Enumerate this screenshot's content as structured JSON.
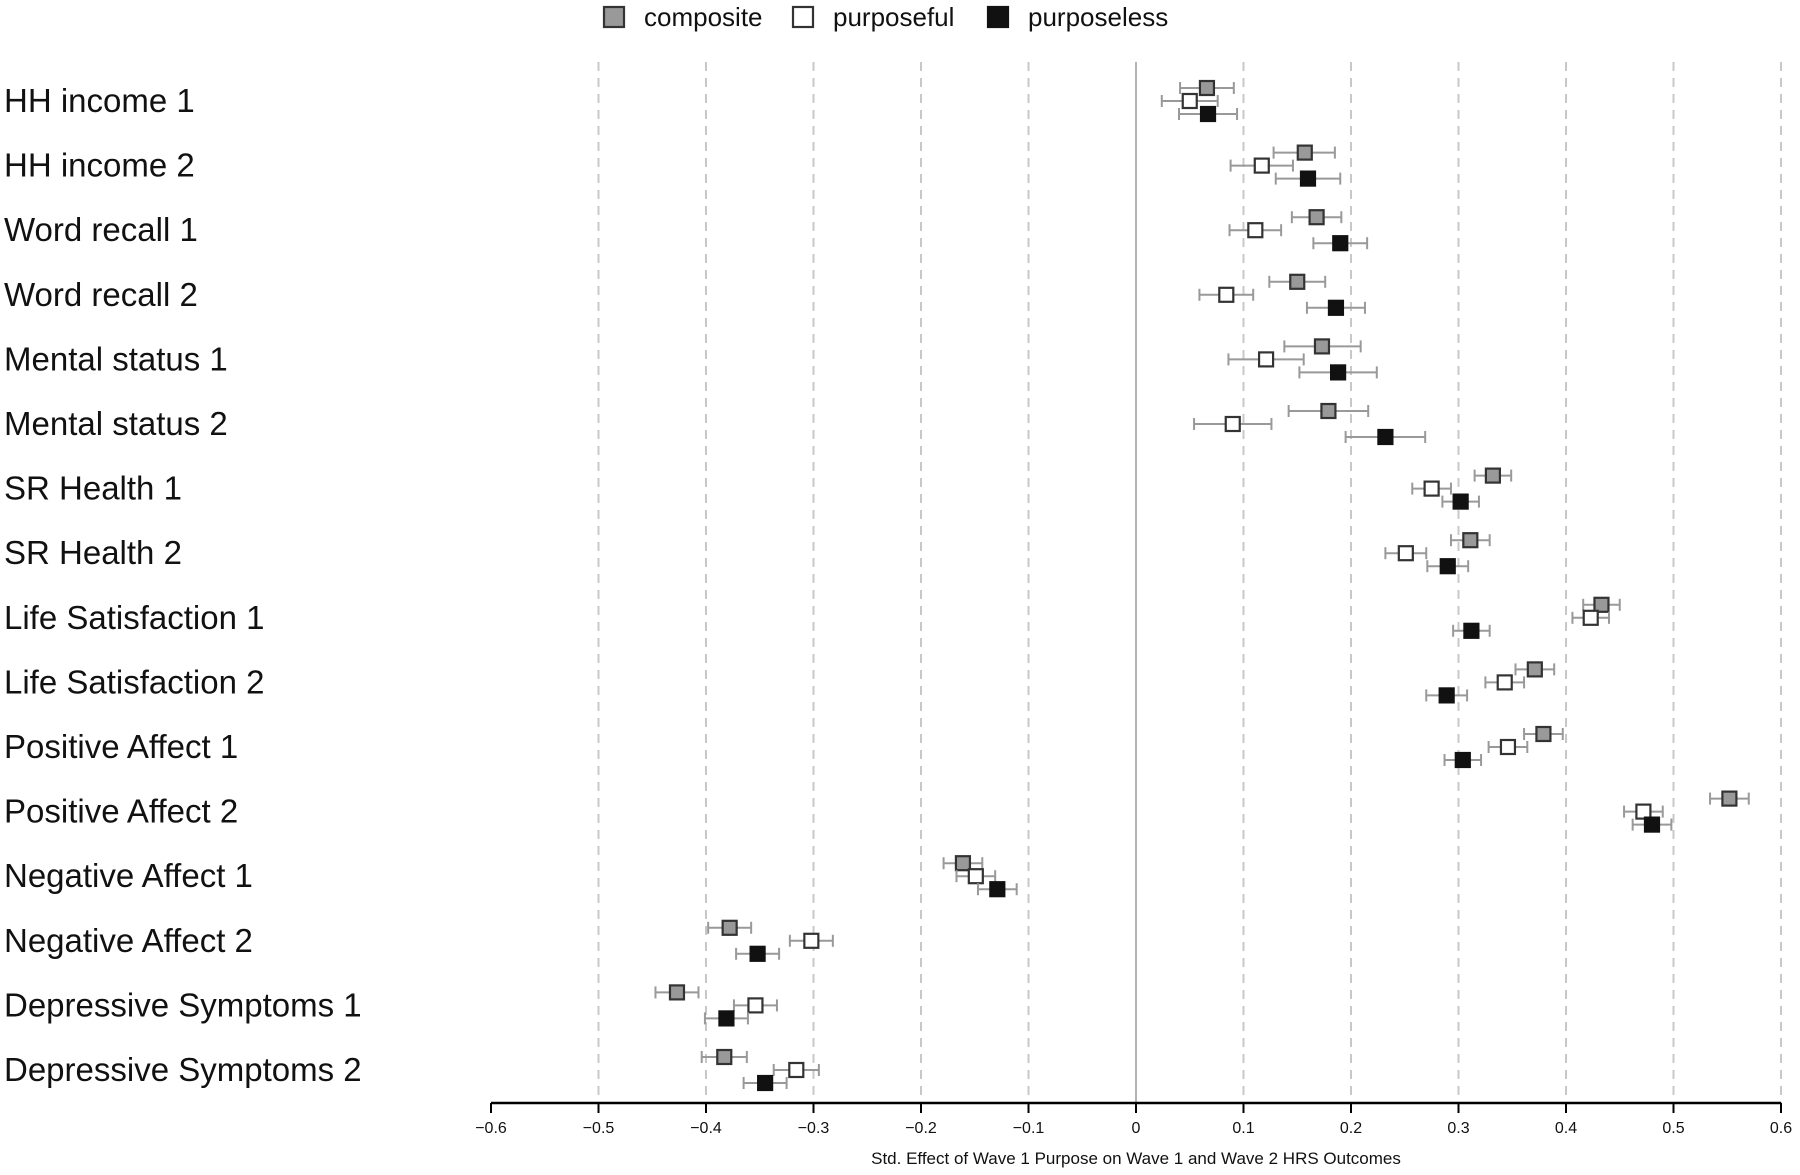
{
  "chart_data": {
    "type": "scatter",
    "subtype": "horizontal dot plot with error bars",
    "title": "",
    "xlabel": "Std. Effect of Wave 1 Purpose on Wave 1 and Wave 2 HRS Outcomes",
    "ylabel": "",
    "xlim": [
      -0.6,
      0.6
    ],
    "xticks": [
      -0.6,
      -0.5,
      -0.4,
      -0.3,
      -0.2,
      -0.1,
      0,
      0.1,
      0.2,
      0.3,
      0.4,
      0.5,
      0.6
    ],
    "xtick_labels": [
      "−0.6",
      "−0.5",
      "−0.4",
      "−0.3",
      "−0.2",
      "−0.1",
      "0",
      "0.1",
      "0.2",
      "0.3",
      "0.4",
      "0.5",
      "0.6"
    ],
    "grid": "vertical dashed lines at each tick",
    "reference_line": 0,
    "legend": {
      "position": "top",
      "entries": [
        "composite",
        "purposeful",
        "purposeless"
      ]
    },
    "categories": [
      "HH income 1",
      "HH income 2",
      "Word recall 1",
      "Word recall 2",
      "Mental status 1",
      "Mental status 2",
      "SR Health 1",
      "SR Health 2",
      "Life Satisfaction 1",
      "Life Satisfaction 2",
      "Positive Affect 1",
      "Positive Affect 2",
      "Negative Affect 1",
      "Negative Affect 2",
      "Depressive Symptoms 1",
      "Depressive Symptoms 2"
    ],
    "series": [
      {
        "name": "composite",
        "marker_fill": "#999999",
        "marker_stroke": "#333333",
        "values": [
          0.066,
          0.157,
          0.168,
          0.15,
          0.173,
          0.179,
          0.332,
          0.311,
          0.433,
          0.371,
          0.379,
          0.552,
          -0.161,
          -0.378,
          -0.427,
          -0.383
        ],
        "ci_low": [
          0.041,
          0.128,
          0.145,
          0.124,
          0.138,
          0.142,
          0.315,
          0.293,
          0.416,
          0.353,
          0.361,
          0.534,
          -0.179,
          -0.398,
          -0.447,
          -0.404
        ],
        "ci_high": [
          0.091,
          0.185,
          0.191,
          0.176,
          0.209,
          0.216,
          0.349,
          0.329,
          0.45,
          0.389,
          0.397,
          0.57,
          -0.143,
          -0.358,
          -0.407,
          -0.362
        ]
      },
      {
        "name": "purposeful",
        "marker_fill": "#ffffff",
        "marker_stroke": "#333333",
        "values": [
          0.05,
          0.117,
          0.111,
          0.084,
          0.121,
          0.09,
          0.275,
          0.251,
          0.423,
          0.343,
          0.346,
          0.472,
          -0.149,
          -0.302,
          -0.354,
          -0.316
        ],
        "ci_low": [
          0.024,
          0.088,
          0.087,
          0.059,
          0.086,
          0.054,
          0.257,
          0.232,
          0.406,
          0.325,
          0.328,
          0.454,
          -0.167,
          -0.322,
          -0.374,
          -0.337
        ],
        "ci_high": [
          0.076,
          0.146,
          0.135,
          0.109,
          0.156,
          0.126,
          0.293,
          0.27,
          0.44,
          0.361,
          0.364,
          0.49,
          -0.131,
          -0.282,
          -0.334,
          -0.295
        ]
      },
      {
        "name": "purposeless",
        "marker_fill": "#111111",
        "marker_stroke": "#111111",
        "values": [
          0.067,
          0.16,
          0.19,
          0.186,
          0.188,
          0.232,
          0.302,
          0.29,
          0.312,
          0.289,
          0.304,
          0.48,
          -0.129,
          -0.352,
          -0.381,
          -0.345
        ],
        "ci_low": [
          0.04,
          0.13,
          0.165,
          0.159,
          0.152,
          0.195,
          0.285,
          0.271,
          0.295,
          0.27,
          0.287,
          0.462,
          -0.147,
          -0.372,
          -0.401,
          -0.365
        ],
        "ci_high": [
          0.094,
          0.19,
          0.215,
          0.213,
          0.224,
          0.269,
          0.319,
          0.309,
          0.329,
          0.308,
          0.321,
          0.498,
          -0.111,
          -0.332,
          -0.361,
          -0.325
        ]
      }
    ],
    "colors": {
      "errorbar": "#999999",
      "grid": "#c8c8c8",
      "zero_line": "#b4b4b4",
      "axis": "#000000"
    }
  }
}
